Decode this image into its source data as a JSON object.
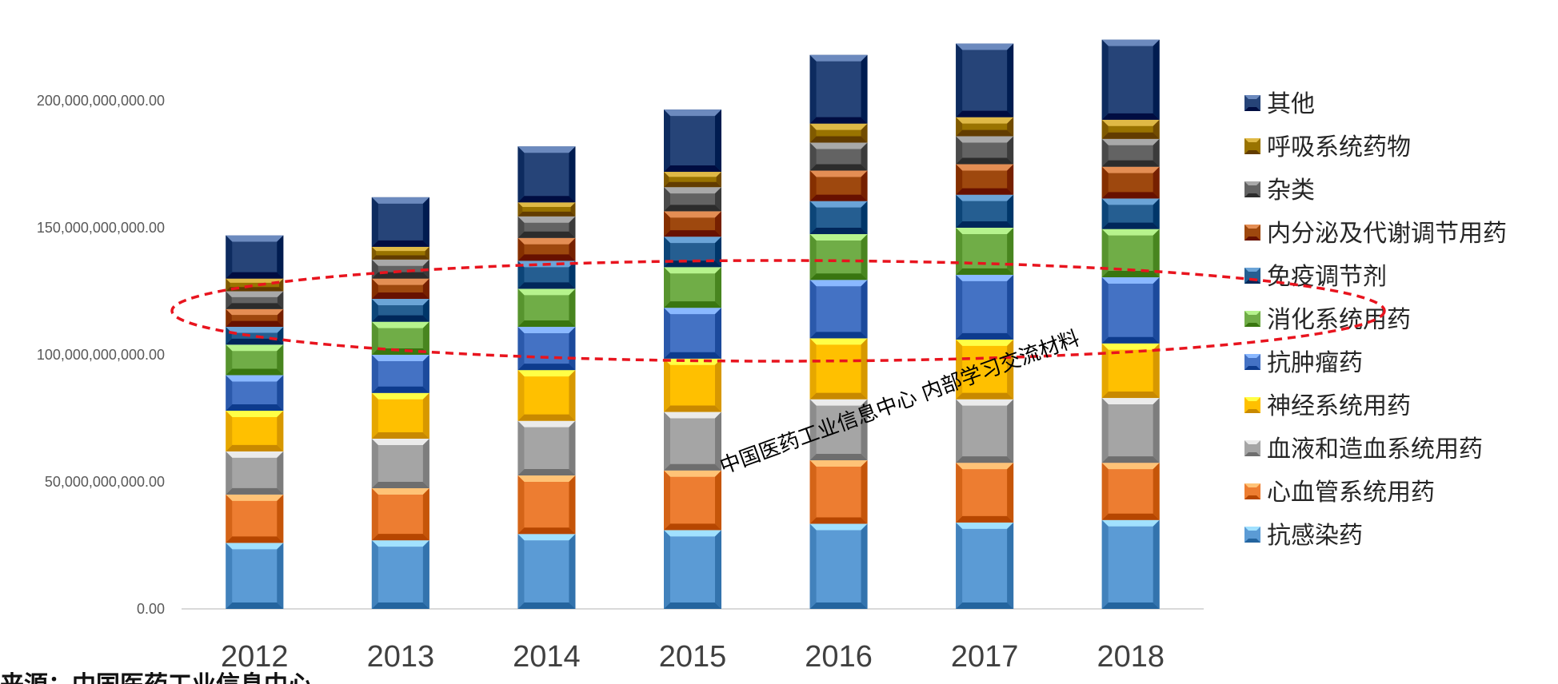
{
  "chart_data": {
    "type": "bar",
    "stacked": true,
    "title": "",
    "xlabel": "",
    "ylabel": "",
    "ylim": [
      0,
      240000000000
    ],
    "yticks": [
      "0.00",
      "50,000,000,000.00",
      "100,000,000,000.00",
      "150,000,000,000.00",
      "200,000,000,000.00"
    ],
    "ytick_values": [
      0,
      50000000000,
      100000000000,
      150000000000,
      200000000000
    ],
    "categories": [
      "2012",
      "2013",
      "2014",
      "2015",
      "2016",
      "2017",
      "2018"
    ],
    "legend_position": "right",
    "grid": false,
    "series": [
      {
        "name": "抗感染药",
        "color": "#5B9BD5",
        "values": [
          26000000000,
          27000000000,
          29500000000,
          31000000000,
          33500000000,
          34000000000,
          35000000000
        ]
      },
      {
        "name": "心血管系统用药",
        "color": "#ED7D31",
        "values": [
          19000000000,
          20500000000,
          23000000000,
          23500000000,
          25000000000,
          23500000000,
          22500000000
        ]
      },
      {
        "name": "血液和造血系统用药",
        "color": "#A5A5A5",
        "values": [
          17000000000,
          19500000000,
          21500000000,
          23000000000,
          24000000000,
          25000000000,
          25500000000
        ]
      },
      {
        "name": "神经系统用药",
        "color": "#FFC000",
        "values": [
          16000000000,
          18000000000,
          20000000000,
          21000000000,
          24000000000,
          23500000000,
          21500000000
        ]
      },
      {
        "name": "抗肿瘤药",
        "color": "#4472C4",
        "values": [
          14000000000,
          15000000000,
          17000000000,
          20000000000,
          23000000000,
          25500000000,
          26000000000
        ]
      },
      {
        "name": "消化系统用药",
        "color": "#70AD47",
        "values": [
          12000000000,
          13000000000,
          15000000000,
          16000000000,
          18000000000,
          18500000000,
          19000000000
        ]
      },
      {
        "name": "免疫调节剂",
        "color": "#255E91",
        "values": [
          7000000000,
          9000000000,
          11000000000,
          12000000000,
          13000000000,
          13000000000,
          12000000000
        ]
      },
      {
        "name": "内分泌及代谢调节用药",
        "color": "#9E480E",
        "values": [
          7000000000,
          8000000000,
          9000000000,
          10000000000,
          12000000000,
          12000000000,
          12500000000
        ]
      },
      {
        "name": "杂类",
        "color": "#636363",
        "values": [
          7000000000,
          7500000000,
          8500000000,
          9500000000,
          11000000000,
          11000000000,
          11000000000
        ]
      },
      {
        "name": "呼吸系统药物",
        "color": "#997300",
        "values": [
          5000000000,
          5000000000,
          5500000000,
          6000000000,
          7500000000,
          7500000000,
          7500000000
        ]
      },
      {
        "name": "其他",
        "color": "#264478",
        "values": [
          17000000000,
          19500000000,
          22000000000,
          24500000000,
          27000000000,
          29000000000,
          31500000000
        ]
      }
    ],
    "annotations": [
      {
        "type": "dashed-ellipse",
        "color": "#E8141E"
      }
    ]
  },
  "watermark": {
    "text": "中国医药工业信息中心  内部学习交流材料"
  },
  "footer": {
    "text": "来源：中国医药工业信息中心"
  }
}
